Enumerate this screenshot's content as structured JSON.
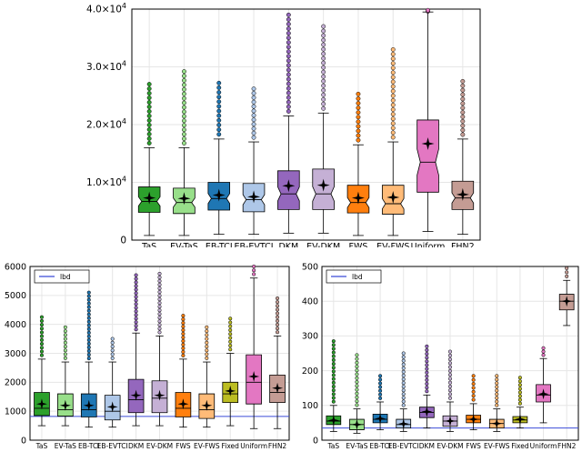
{
  "chart_data": [
    {
      "type": "box",
      "name": "top",
      "y_axis": {
        "min": 0,
        "max": 40000,
        "ticks": [
          {
            "v": 0,
            "label": "0"
          },
          {
            "v": 10000,
            "label": "1.0×10",
            "exp": "4"
          },
          {
            "v": 20000,
            "label": "2.0×10",
            "exp": "4"
          },
          {
            "v": 30000,
            "label": "3.0×10",
            "exp": "4"
          },
          {
            "v": 40000,
            "label": "4.0×10",
            "exp": "4"
          }
        ]
      },
      "lbd": null,
      "categories": [
        "TaS",
        "EV-TaS",
        "EB-TCI",
        "EB-EVTCI",
        "DKM",
        "EV-DKM",
        "FWS",
        "EV-FWS",
        "Uniform",
        "FHN2"
      ],
      "boxes": [
        {
          "color": "#2ca02c",
          "min": 800,
          "q1": 4800,
          "median": 6700,
          "q3": 9200,
          "max": 16000,
          "mean": 7300,
          "out_max": 27000
        },
        {
          "color": "#98df8a",
          "min": 800,
          "q1": 4600,
          "median": 6500,
          "q3": 9000,
          "max": 16000,
          "mean": 7200,
          "out_max": 29200
        },
        {
          "color": "#1f77b4",
          "min": 1000,
          "q1": 5200,
          "median": 7200,
          "q3": 10000,
          "max": 17500,
          "mean": 7800,
          "out_max": 27200
        },
        {
          "color": "#aec7e8",
          "min": 1000,
          "q1": 4900,
          "median": 7000,
          "q3": 9800,
          "max": 17000,
          "mean": 7500,
          "out_max": 26200
        },
        {
          "color": "#9467bd",
          "min": 1200,
          "q1": 5300,
          "median": 8000,
          "q3": 12000,
          "max": 21500,
          "mean": 9400,
          "out_max": 39000
        },
        {
          "color": "#c5b0d5",
          "min": 1200,
          "q1": 5300,
          "median": 8000,
          "q3": 12300,
          "max": 22000,
          "mean": 9500,
          "out_max": 37000
        },
        {
          "color": "#ff7f0e",
          "min": 800,
          "q1": 4700,
          "median": 6500,
          "q3": 9500,
          "max": 16500,
          "mean": 7300,
          "out_max": 25300
        },
        {
          "color": "#ffbb78",
          "min": 800,
          "q1": 4500,
          "median": 6300,
          "q3": 9500,
          "max": 17000,
          "mean": 7400,
          "out_max": 33000
        },
        {
          "color": "#e377c2",
          "min": 1500,
          "q1": 8300,
          "median": 13500,
          "q3": 20800,
          "max": 39500,
          "mean": 16700,
          "out_max": 39800
        },
        {
          "color": "#c49c94",
          "min": 1000,
          "q1": 5300,
          "median": 7300,
          "q3": 10200,
          "max": 17500,
          "mean": 7900,
          "out_max": 27500
        }
      ]
    },
    {
      "type": "box",
      "name": "bottom-left",
      "y_axis": {
        "min": 0,
        "max": 6000,
        "ticks": [
          {
            "v": 0,
            "label": "0"
          },
          {
            "v": 1000,
            "label": "1000"
          },
          {
            "v": 2000,
            "label": "2000"
          },
          {
            "v": 3000,
            "label": "3000"
          },
          {
            "v": 4000,
            "label": "4000"
          },
          {
            "v": 5000,
            "label": "5000"
          },
          {
            "v": 6000,
            "label": "6000"
          }
        ]
      },
      "legend": "lbd",
      "lbd": 820,
      "categories": [
        "TaS",
        "EV-TaS",
        "EB-TCI",
        "EB-EVTCI",
        "DKM",
        "EV-DKM",
        "FWS",
        "EV-FWS",
        "Fixed",
        "Uniform",
        "FHN2"
      ],
      "boxes": [
        {
          "color": "#2ca02c",
          "min": 500,
          "q1": 850,
          "median": 1100,
          "q3": 1650,
          "max": 2800,
          "mean": 1250,
          "out_max": 4250
        },
        {
          "color": "#98df8a",
          "min": 500,
          "q1": 830,
          "median": 1050,
          "q3": 1600,
          "max": 2700,
          "mean": 1200,
          "out_max": 3900
        },
        {
          "color": "#1f77b4",
          "min": 450,
          "q1": 800,
          "median": 1050,
          "q3": 1600,
          "max": 2700,
          "mean": 1200,
          "out_max": 5100
        },
        {
          "color": "#aec7e8",
          "min": 450,
          "q1": 700,
          "median": 1000,
          "q3": 1550,
          "max": 2700,
          "mean": 1150,
          "out_max": 3500
        },
        {
          "color": "#9467bd",
          "min": 500,
          "q1": 950,
          "median": 1400,
          "q3": 2100,
          "max": 3700,
          "mean": 1550,
          "out_max": 5700
        },
        {
          "color": "#c5b0d5",
          "min": 500,
          "q1": 950,
          "median": 1450,
          "q3": 2050,
          "max": 3600,
          "mean": 1550,
          "out_max": 5750
        },
        {
          "color": "#ff7f0e",
          "min": 450,
          "q1": 800,
          "median": 1100,
          "q3": 1650,
          "max": 2800,
          "mean": 1250,
          "out_max": 4300
        },
        {
          "color": "#ffbb78",
          "min": 450,
          "q1": 750,
          "median": 1050,
          "q3": 1600,
          "max": 2700,
          "mean": 1200,
          "out_max": 3900
        },
        {
          "color": "#bcbd22",
          "min": 500,
          "q1": 1300,
          "median": 1600,
          "q3": 2000,
          "max": 3000,
          "mean": 1700,
          "out_max": 4200
        },
        {
          "color": "#e377c2",
          "min": 400,
          "q1": 1250,
          "median": 2000,
          "q3": 2950,
          "max": 5600,
          "mean": 2200,
          "out_max": 6000
        },
        {
          "color": "#c49c94",
          "min": 400,
          "q1": 1300,
          "median": 1650,
          "q3": 2250,
          "max": 3600,
          "mean": 1800,
          "out_max": 4900
        }
      ]
    },
    {
      "type": "box",
      "name": "bottom-right",
      "y_axis": {
        "min": 0,
        "max": 500,
        "ticks": [
          {
            "v": 0,
            "label": "0"
          },
          {
            "v": 100,
            "label": "100"
          },
          {
            "v": 200,
            "label": "200"
          },
          {
            "v": 300,
            "label": "300"
          },
          {
            "v": 400,
            "label": "400"
          },
          {
            "v": 500,
            "label": "500"
          }
        ]
      },
      "legend": "lbd",
      "lbd": 35,
      "categories": [
        "TaS",
        "EV-TaS",
        "EB-TCI",
        "EB-EVTCI",
        "DKM",
        "EV-DKM",
        "FWS",
        "EV-FWS",
        "Fixed",
        "Uniform",
        "FHN2"
      ],
      "boxes": [
        {
          "color": "#2ca02c",
          "min": 25,
          "q1": 45,
          "median": 55,
          "q3": 70,
          "max": 100,
          "mean": 57,
          "out_max": 285
        },
        {
          "color": "#98df8a",
          "min": 20,
          "q1": 30,
          "median": 45,
          "q3": 60,
          "max": 90,
          "mean": 45,
          "out_max": 245
        },
        {
          "color": "#1f77b4",
          "min": 30,
          "q1": 50,
          "median": 60,
          "q3": 75,
          "max": 110,
          "mean": 62,
          "out_max": 185
        },
        {
          "color": "#aec7e8",
          "min": 25,
          "q1": 35,
          "median": 45,
          "q3": 60,
          "max": 90,
          "mean": 47,
          "out_max": 250
        },
        {
          "color": "#9467bd",
          "min": 35,
          "q1": 65,
          "median": 80,
          "q3": 95,
          "max": 130,
          "mean": 82,
          "out_max": 270
        },
        {
          "color": "#c5b0d5",
          "min": 25,
          "q1": 40,
          "median": 55,
          "q3": 70,
          "max": 110,
          "mean": 55,
          "out_max": 255
        },
        {
          "color": "#ff7f0e",
          "min": 30,
          "q1": 50,
          "median": 60,
          "q3": 72,
          "max": 105,
          "mean": 60,
          "out_max": 185
        },
        {
          "color": "#ffbb78",
          "min": 25,
          "q1": 35,
          "median": 48,
          "q3": 60,
          "max": 90,
          "mean": 48,
          "out_max": 185
        },
        {
          "color": "#bcbd22",
          "min": 35,
          "q1": 50,
          "median": 58,
          "q3": 68,
          "max": 95,
          "mean": 60,
          "out_max": 180
        },
        {
          "color": "#e377c2",
          "min": 50,
          "q1": 110,
          "median": 130,
          "q3": 160,
          "max": 235,
          "mean": 133,
          "out_max": 265
        },
        {
          "color": "#c49c94",
          "min": 330,
          "q1": 375,
          "median": 400,
          "q3": 420,
          "max": 460,
          "mean": 400,
          "out_max": 495
        }
      ]
    }
  ]
}
